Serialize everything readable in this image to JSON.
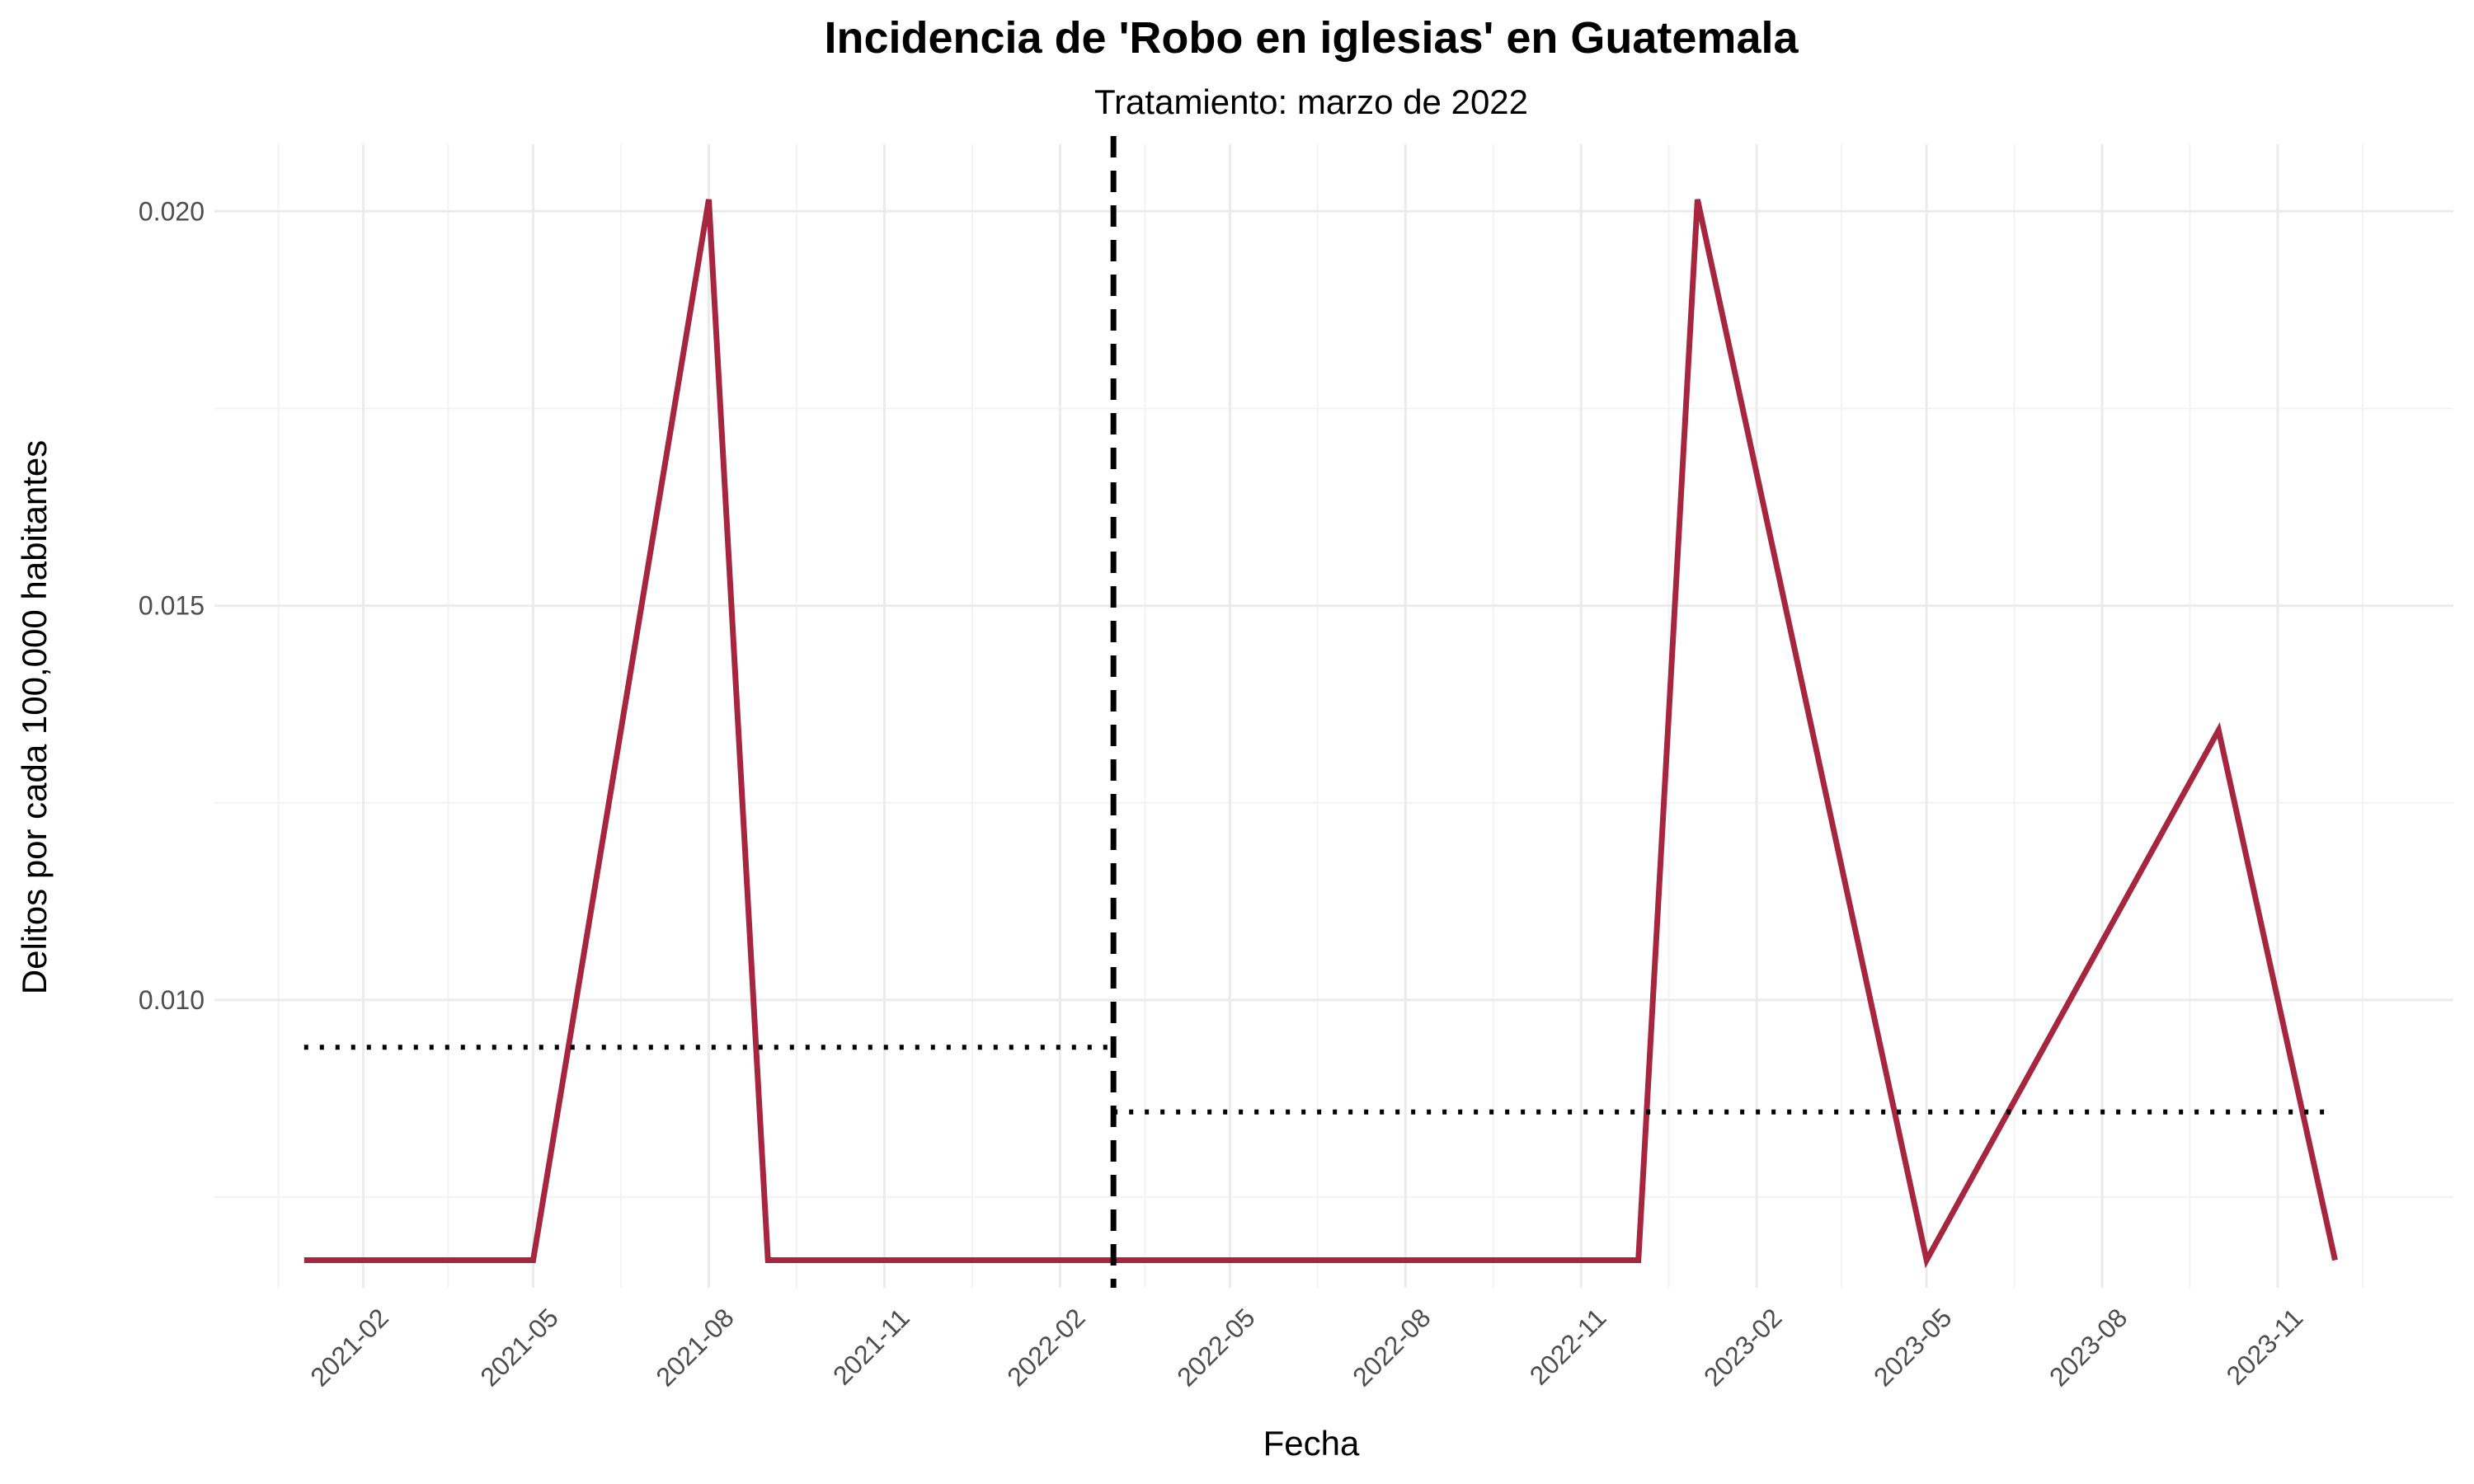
{
  "chart_data": {
    "type": "line",
    "title": "Incidencia de 'Robo en iglesias' en Guatemala",
    "subtitle": "Tratamiento: marzo de 2022",
    "xlabel": "Fecha",
    "ylabel": "Delitos por cada 100,000 habitantes",
    "xlim": [
      "2020-11-15",
      "2024-02-01"
    ],
    "ylim": [
      0.00635,
      0.02085
    ],
    "y_ticks": [
      0.01,
      0.015,
      0.02
    ],
    "y_tick_labels": [
      "0.010",
      "0.015",
      "0.020"
    ],
    "x_ticks": [
      "2021-02-01",
      "2021-05-01",
      "2021-08-01",
      "2021-11-01",
      "2022-02-01",
      "2022-05-01",
      "2022-08-01",
      "2022-11-01",
      "2023-02-01",
      "2023-05-01",
      "2023-08-01",
      "2023-11-01"
    ],
    "x_tick_labels": [
      "2021-02",
      "2021-05",
      "2021-08",
      "2021-11",
      "2022-02",
      "2022-05",
      "2022-08",
      "2022-11",
      "2023-02",
      "2023-05",
      "2023-08",
      "2023-11"
    ],
    "grid": true,
    "line_color": "#A6253F",
    "treatment": {
      "date": "2022-03-01",
      "style": "dashed",
      "color": "#000000"
    },
    "series": [
      {
        "values": [
          {
            "x": "2021-01-01",
            "y": 0.0067
          },
          {
            "x": "2021-05-01",
            "y": 0.0067
          },
          {
            "x": "2021-08-01",
            "y": 0.02015
          },
          {
            "x": "2021-09-01",
            "y": 0.0067
          },
          {
            "x": "2022-12-01",
            "y": 0.0067
          },
          {
            "x": "2023-01-01",
            "y": 0.02015
          },
          {
            "x": "2023-05-01",
            "y": 0.0067
          },
          {
            "x": "2023-10-01",
            "y": 0.01342
          },
          {
            "x": "2023-12-01",
            "y": 0.0067
          }
        ]
      }
    ],
    "mean_lines": [
      {
        "from": "2021-01-01",
        "to": "2022-03-01",
        "y": 0.0094,
        "style": "dotted"
      },
      {
        "from": "2022-03-01",
        "to": "2023-12-01",
        "y": 0.00858,
        "style": "dotted"
      }
    ]
  }
}
